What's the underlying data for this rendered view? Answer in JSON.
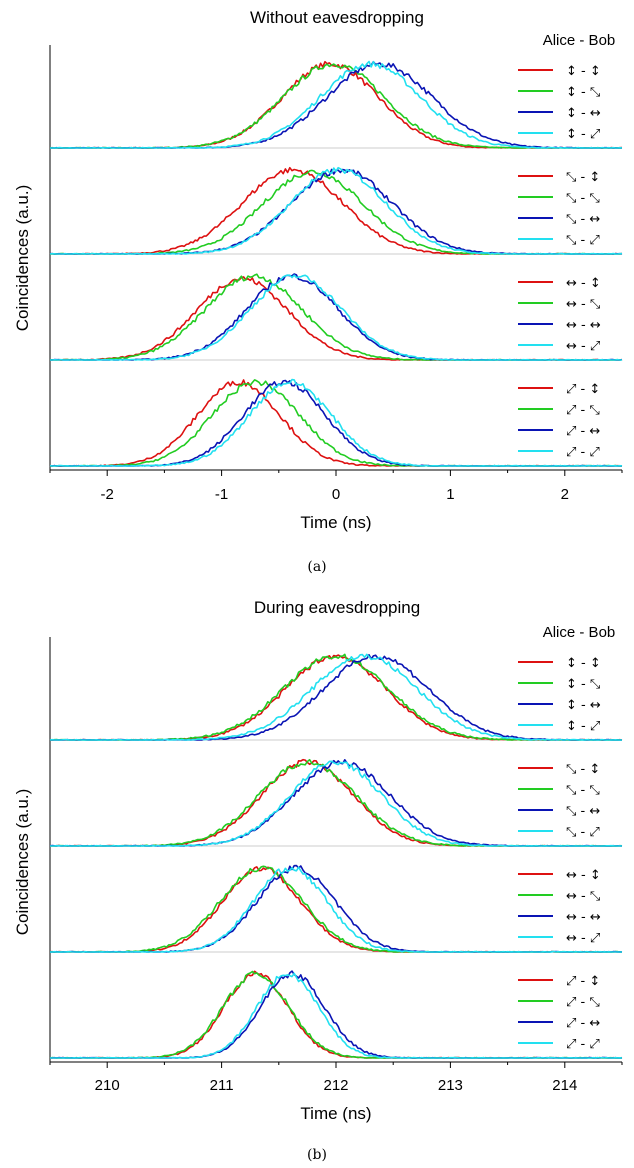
{
  "chart_data": [
    {
      "type": "line",
      "caption": "(a)",
      "title": "Without eavesdropping",
      "xlabel": "Time (ns)",
      "ylabel": "Coincidences (a.u.)",
      "xlim": [
        -2.5,
        2.5
      ],
      "xticks": [
        "-2",
        "-1",
        "0",
        "1",
        "2"
      ],
      "xtick_values": [
        -2,
        -1,
        0,
        1,
        2
      ],
      "legend_header": "Alice - Bob",
      "panels": [
        {
          "series": [
            {
              "name": "↕ - ↕",
              "color": "#dd1111",
              "center": -0.05,
              "width": 0.42,
              "peak": 1.0
            },
            {
              "name": "↕ - ⤡",
              "color": "#22cc22",
              "center": -0.02,
              "width": 0.44,
              "peak": 1.0
            },
            {
              "name": "↕ - ↔",
              "color": "#0a14b4",
              "center": 0.38,
              "width": 0.46,
              "peak": 1.0
            },
            {
              "name": "↕ - ⤢",
              "color": "#22e0f0",
              "center": 0.3,
              "width": 0.44,
              "peak": 1.0
            }
          ]
        },
        {
          "series": [
            {
              "name": "⤡ - ↕",
              "color": "#dd1111",
              "center": -0.38,
              "width": 0.44,
              "peak": 1.0
            },
            {
              "name": "⤡ - ⤡",
              "color": "#22cc22",
              "center": -0.2,
              "width": 0.44,
              "peak": 0.98
            },
            {
              "name": "⤡ - ↔",
              "color": "#0a14b4",
              "center": 0.05,
              "width": 0.44,
              "peak": 1.0
            },
            {
              "name": "⤡ - ⤢",
              "color": "#22e0f0",
              "center": 0.02,
              "width": 0.42,
              "peak": 1.0
            }
          ]
        },
        {
          "series": [
            {
              "name": "↔ - ↕",
              "color": "#dd1111",
              "center": -0.82,
              "width": 0.4,
              "peak": 0.97
            },
            {
              "name": "↔ - ⤡",
              "color": "#22cc22",
              "center": -0.72,
              "width": 0.42,
              "peak": 1.0
            },
            {
              "name": "↔ - ↔",
              "color": "#0a14b4",
              "center": -0.38,
              "width": 0.4,
              "peak": 1.0
            },
            {
              "name": "↔ - ⤢",
              "color": "#22e0f0",
              "center": -0.35,
              "width": 0.4,
              "peak": 1.0
            }
          ]
        },
        {
          "series": [
            {
              "name": "⤢ - ↕",
              "color": "#dd1111",
              "center": -0.85,
              "width": 0.36,
              "peak": 1.0
            },
            {
              "name": "⤢ - ⤡",
              "color": "#22cc22",
              "center": -0.7,
              "width": 0.38,
              "peak": 1.0
            },
            {
              "name": "⤢ - ↔",
              "color": "#0a14b4",
              "center": -0.45,
              "width": 0.36,
              "peak": 1.0
            },
            {
              "name": "⤢ - ⤢",
              "color": "#22e0f0",
              "center": -0.4,
              "width": 0.36,
              "peak": 1.0
            }
          ]
        }
      ]
    },
    {
      "type": "line",
      "caption": "(b)",
      "title": "During eavesdropping",
      "xlabel": "Time (ns)",
      "ylabel": "Coincidences (a.u.)",
      "xlim": [
        209.5,
        214.5
      ],
      "xticks": [
        "210",
        "211",
        "212",
        "213",
        "214"
      ],
      "xtick_values": [
        210,
        211,
        212,
        213,
        214
      ],
      "legend_header": "Alice - Bob",
      "panels": [
        {
          "series": [
            {
              "name": "↕ - ↕",
              "color": "#dd1111",
              "center": 212.0,
              "width": 0.44,
              "peak": 1.0
            },
            {
              "name": "↕ - ⤡",
              "color": "#22cc22",
              "center": 212.0,
              "width": 0.46,
              "peak": 1.0
            },
            {
              "name": "↕ - ↔",
              "color": "#0a14b4",
              "center": 212.35,
              "width": 0.46,
              "peak": 1.0
            },
            {
              "name": "↕ - ⤢",
              "color": "#22e0f0",
              "center": 212.25,
              "width": 0.46,
              "peak": 1.0
            }
          ]
        },
        {
          "series": [
            {
              "name": "⤡ - ↕",
              "color": "#dd1111",
              "center": 211.75,
              "width": 0.4,
              "peak": 1.0
            },
            {
              "name": "⤡ - ⤡",
              "color": "#22cc22",
              "center": 211.75,
              "width": 0.42,
              "peak": 1.0
            },
            {
              "name": "⤡ - ↔",
              "color": "#0a14b4",
              "center": 212.05,
              "width": 0.42,
              "peak": 1.0
            },
            {
              "name": "⤡ - ⤢",
              "color": "#22e0f0",
              "center": 212.0,
              "width": 0.4,
              "peak": 1.0
            }
          ]
        },
        {
          "series": [
            {
              "name": "↔ - ↕",
              "color": "#dd1111",
              "center": 211.35,
              "width": 0.34,
              "peak": 1.0
            },
            {
              "name": "↔ - ⤡",
              "color": "#22cc22",
              "center": 211.35,
              "width": 0.36,
              "peak": 1.0
            },
            {
              "name": "↔ - ↔",
              "color": "#0a14b4",
              "center": 211.65,
              "width": 0.34,
              "peak": 1.0
            },
            {
              "name": "↔ - ⤢",
              "color": "#22e0f0",
              "center": 211.6,
              "width": 0.32,
              "peak": 1.0
            }
          ]
        },
        {
          "series": [
            {
              "name": "⤢ - ↕",
              "color": "#dd1111",
              "center": 211.3,
              "width": 0.28,
              "peak": 1.0
            },
            {
              "name": "⤢ - ⤡",
              "color": "#22cc22",
              "center": 211.3,
              "width": 0.29,
              "peak": 1.0
            },
            {
              "name": "⤢ - ↔",
              "color": "#0a14b4",
              "center": 211.62,
              "width": 0.28,
              "peak": 1.0
            },
            {
              "name": "⤢ - ⤢",
              "color": "#22e0f0",
              "center": 211.58,
              "width": 0.27,
              "peak": 1.0
            }
          ]
        }
      ]
    }
  ]
}
